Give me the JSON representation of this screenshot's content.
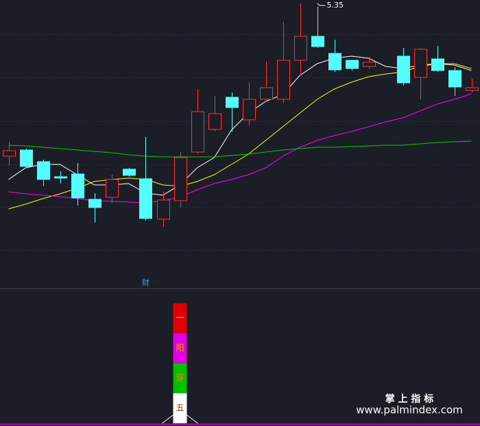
{
  "chart_data": [
    {
      "type": "candlestick",
      "x": [
        0,
        1,
        2,
        3,
        4,
        5,
        6,
        7,
        8,
        9,
        10,
        11,
        12,
        13,
        14,
        15,
        16,
        17,
        18,
        19,
        20,
        21,
        23,
        24,
        25,
        26,
        27
      ],
      "open": [
        4.458,
        4.494,
        4.426,
        4.338,
        4.354,
        4.206,
        4.218,
        4.382,
        4.326,
        4.09,
        4.198,
        4.482,
        4.614,
        4.802,
        4.67,
        4.79,
        4.79,
        5.018,
        5.158,
        5.058,
        5.018,
        4.982,
        5.042,
        4.918,
        5.026,
        4.958,
        4.842
      ],
      "high": [
        4.542,
        4.502,
        4.438,
        4.37,
        4.418,
        4.242,
        4.35,
        4.39,
        4.57,
        4.25,
        4.482,
        4.85,
        4.81,
        4.83,
        4.89,
        5.01,
        5.242,
        5.35,
        5.33,
        5.138,
        5.018,
        5.038,
        5.09,
        5.09,
        5.102,
        4.978,
        4.91
      ],
      "low": [
        4.402,
        4.39,
        4.282,
        4.298,
        4.17,
        4.07,
        4.182,
        4.338,
        4.082,
        4.046,
        4.158,
        4.474,
        4.602,
        4.602,
        4.638,
        4.778,
        4.77,
        4.93,
        5.09,
        4.95,
        4.958,
        4.97,
        4.87,
        4.79,
        4.95,
        4.81,
        4.83
      ],
      "close": [
        4.49,
        4.398,
        4.322,
        4.33,
        4.214,
        4.158,
        4.322,
        4.346,
        4.094,
        4.202,
        4.45,
        4.718,
        4.706,
        4.742,
        4.79,
        4.858,
        5.018,
        5.158,
        5.098,
        4.962,
        4.97,
        5.006,
        4.886,
        5.082,
        4.958,
        4.862,
        4.858
      ],
      "up_color": "#ff3030",
      "down_color": "#54fcfc",
      "lines": {
        "x": [
          0,
          1,
          2,
          3,
          4,
          5,
          6,
          7,
          8,
          9,
          10,
          11,
          12,
          13,
          14,
          15,
          16,
          17,
          18,
          19,
          20,
          21,
          22,
          23,
          24,
          25,
          26,
          27
        ],
        "series": [
          {
            "color": "#ffffff",
            "values": [
              4.322,
              4.39,
              4.41,
              4.41,
              4.35,
              4.29,
              4.29,
              4.298,
              4.242,
              4.23,
              4.29,
              4.39,
              4.45,
              4.61,
              4.71,
              4.778,
              4.818,
              4.93,
              4.998,
              5.03,
              5.042,
              5.03,
              4.982,
              4.97,
              4.99,
              4.998,
              4.99,
              4.958
            ]
          },
          {
            "color": "#ffff00",
            "values": [
              4.15,
              4.178,
              4.21,
              4.238,
              4.27,
              4.31,
              4.322,
              4.33,
              4.322,
              4.29,
              4.282,
              4.31,
              4.35,
              4.41,
              4.47,
              4.55,
              4.63,
              4.71,
              4.79,
              4.85,
              4.89,
              4.922,
              4.938,
              4.95,
              4.982,
              4.998,
              4.998,
              4.97
            ]
          },
          {
            "color": "#ff00ff",
            "values": [
              4.25,
              4.238,
              4.23,
              4.222,
              4.21,
              4.198,
              4.194,
              4.19,
              4.186,
              4.198,
              4.218,
              4.262,
              4.298,
              4.322,
              4.35,
              4.39,
              4.458,
              4.51,
              4.55,
              4.578,
              4.602,
              4.63,
              4.658,
              4.682,
              4.722,
              4.762,
              4.79,
              4.822
            ]
          },
          {
            "color": "#00d000",
            "values": [
              4.522,
              4.518,
              4.51,
              4.502,
              4.494,
              4.486,
              4.478,
              4.466,
              4.458,
              4.454,
              4.454,
              4.454,
              4.454,
              4.462,
              4.47,
              4.482,
              4.494,
              4.502,
              4.51,
              4.51,
              4.514,
              4.518,
              4.522,
              4.522,
              4.53,
              4.538,
              4.542,
              4.546
            ]
          }
        ]
      },
      "annotations": [
        {
          "label": "5.35",
          "x": 18,
          "y": 5.35
        },
        {
          "label": "财",
          "x": 8
        }
      ],
      "xlim": [
        -0.5,
        27.5
      ],
      "ylim": [
        3.69,
        5.37
      ]
    },
    {
      "type": "stacked_bar",
      "x": [
        10
      ],
      "series": [
        {
          "name": "五",
          "color": "#ffffff",
          "label_color": "#a03000",
          "values": [
            1
          ]
        },
        {
          "name": "穿",
          "color": "#00c000",
          "label_color": "#ff8000",
          "values": [
            1
          ]
        },
        {
          "name": "阳",
          "color": "#e000e0",
          "label_color": "#ffa000",
          "values": [
            1
          ]
        },
        {
          "name": "一",
          "color": "#e00000",
          "label_color": "#ffc0c0",
          "values": [
            1
          ]
        }
      ],
      "xlim": [
        -0.5,
        27.5
      ],
      "ylim": [
        0,
        4.4
      ]
    }
  ],
  "watermark": {
    "line1": "掌 上 指 标",
    "line2": "www.palmindex.com"
  }
}
